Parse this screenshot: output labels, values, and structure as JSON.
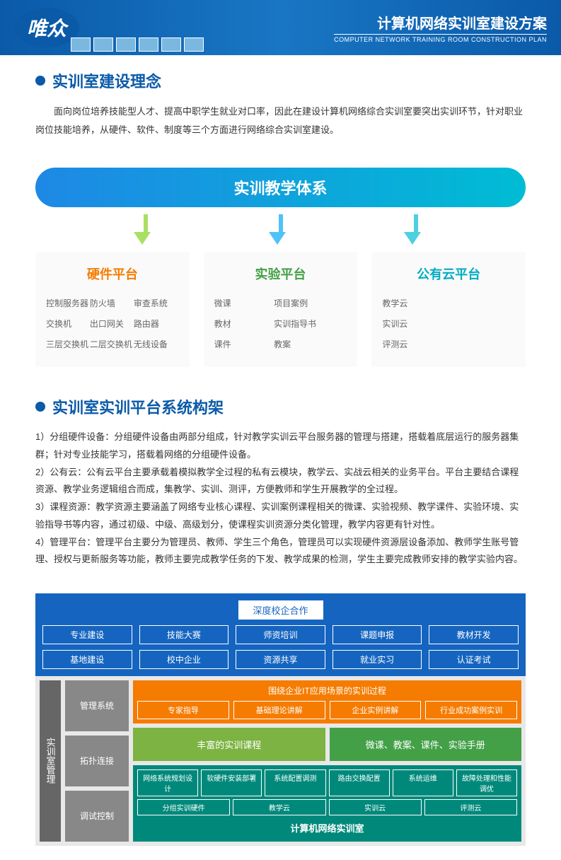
{
  "header": {
    "logo": "唯众",
    "title_cn": "计算机网络实训室建设方案",
    "title_en": "COMPUTER NETWORK TRAINING ROOM CONSTRUCTION PLAN"
  },
  "section1": {
    "title": "实训室建设理念",
    "body": "面向岗位培养技能型人才、提高中职学生就业对口率，因此在建设计算机网络综合实训室要突出实训环节，针对职业岗位技能培养，从硬件、软件、制度等三个方面进行网络综合实训室建设。"
  },
  "teach_sys": {
    "banner": "实训教学体系",
    "banner_gradient": [
      "#1e88e5",
      "#00bcd4"
    ],
    "arrows": [
      {
        "color": "#a8e063"
      },
      {
        "color": "#4fc3f7"
      },
      {
        "color": "#4dd0e1"
      }
    ],
    "platforms": [
      {
        "title": "硬件平台",
        "color": "#f57c00",
        "rows": [
          [
            "控制服务器",
            "防火墙",
            "审查系统"
          ],
          [
            "交换机",
            "出口网关",
            "路由器"
          ],
          [
            "三层交换机",
            "二层交换机",
            "无线设备"
          ]
        ]
      },
      {
        "title": "实验平台",
        "color": "#43a047",
        "rows": [
          [
            "微课",
            "项目案例"
          ],
          [
            "教材",
            "实训指导书"
          ],
          [
            "课件",
            "教案"
          ]
        ]
      },
      {
        "title": "公有云平台",
        "color": "#00acc1",
        "rows": [
          [
            "教学云"
          ],
          [
            "实训云"
          ],
          [
            "评测云"
          ]
        ]
      }
    ]
  },
  "section2": {
    "title": "实训室实训平台系统构架",
    "items": [
      "1）分组硬件设备：分组硬件设备由两部分组成，针对教学实训云平台服务器的管理与搭建，搭载着底层运行的服务器集群；针对专业技能学习，搭载着网络的分组硬件设备。",
      "2）公有云：公有云平台主要承载着模拟教学全过程的私有云模块，教学云、实战云相关的业务平台。平台主要结合课程资源、教学业务逻辑组合而成，集教学、实训、测评，方便教师和学生开展教学的全过程。",
      "3）课程资源：教学资源主要涵盖了网络专业核心课程、实训案例课程相关的微课、实验视频、教学课件、实验环境、实验指导书等内容，通过初级、中级、高级划分，使课程实训资源分类化管理，教学内容更有针对性。",
      "4）管理平台：管理平台主要分为管理员、教师、学生三个角色，管理员可以实现硬件资源层设备添加、教师学生账号管理、授权与更新服务等功能，教师主要完成教学任务的下发、教学成果的检测，学生主要完成教师安排的教学实验内容。"
    ]
  },
  "bottom": {
    "top_bg": "#1565c0",
    "top_title": "深度校企合作",
    "top_rows": [
      [
        "专业建设",
        "技能大赛",
        "师资培训",
        "课题申报",
        "教材开发"
      ],
      [
        "基地建设",
        "校中企业",
        "资源共享",
        "就业实习",
        "认证考试"
      ]
    ],
    "side_label": "实训室管理",
    "side_bg": "#666666",
    "side_items": [
      "管理系统",
      "拓扑连接",
      "调试控制"
    ],
    "side_item_bg": "#888888",
    "orange_title": "围绕企业IT应用场景的实训过程",
    "orange_bg": "#f57c00",
    "orange_row": [
      "专家指导",
      "基础理论讲解",
      "企业实例讲解",
      "行业成功案例实训"
    ],
    "green_row": [
      {
        "label": "丰富的实训课程",
        "bg": "#7cb342"
      },
      {
        "label": "微课、教案、课件、实验手册",
        "bg": "#43a047"
      }
    ],
    "teal_bg": "#00897b",
    "teal_row1": [
      "网络系统规划设计",
      "软硬件安装部署",
      "系统配置调测",
      "路由交换配置",
      "系统运维",
      "故障处理和性能调优"
    ],
    "teal_row2": [
      "分组实训硬件",
      "教学云",
      "实训云",
      "评测云"
    ],
    "teal_title": "计算机网络实训室"
  }
}
